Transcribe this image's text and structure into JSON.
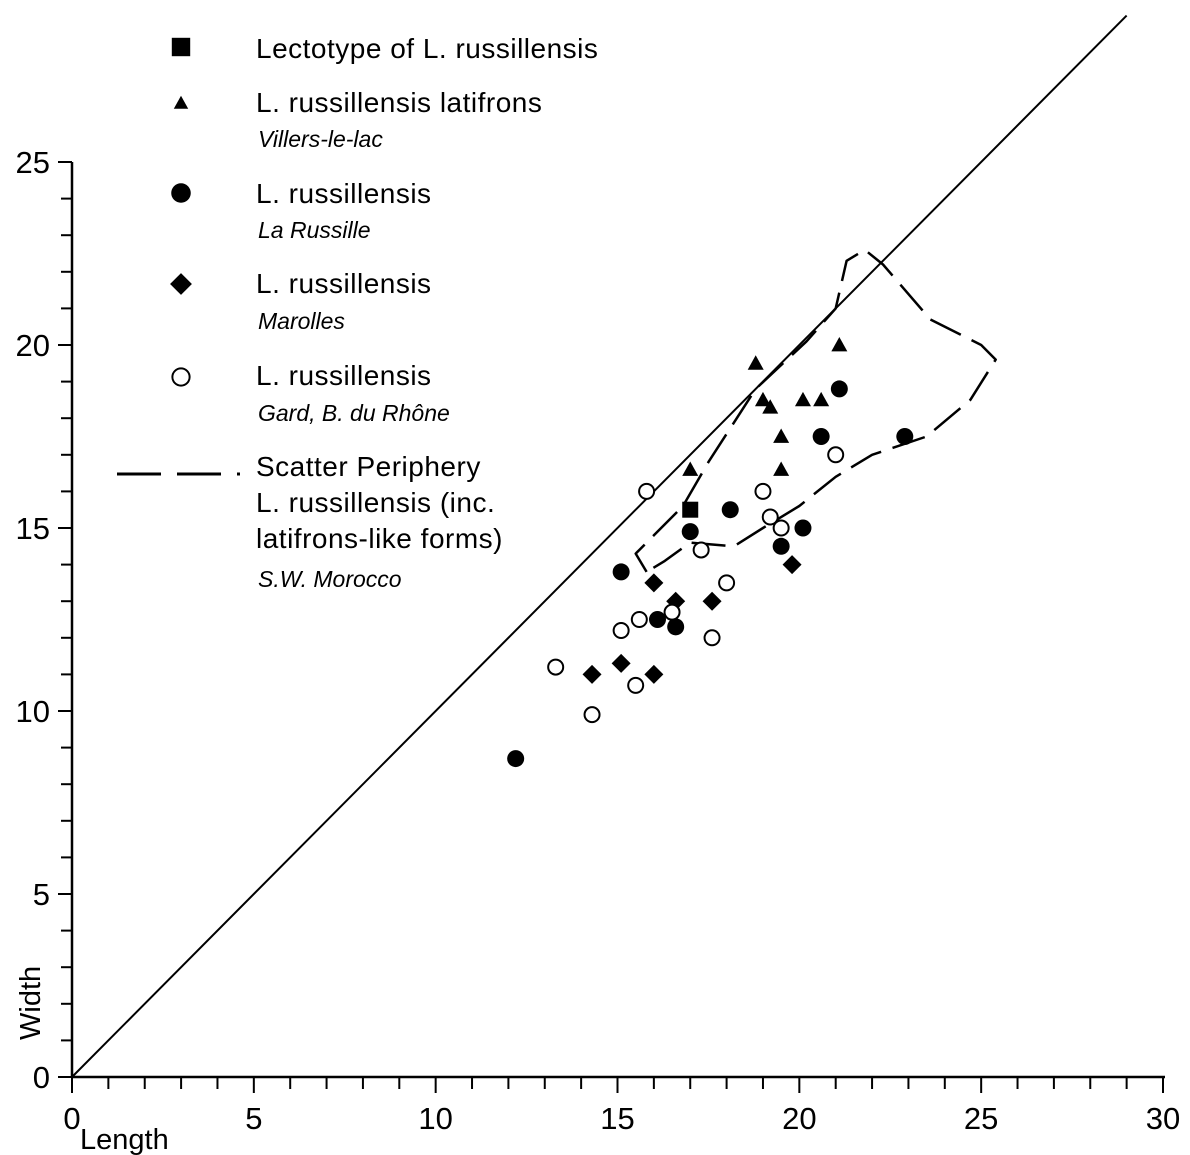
{
  "chart_data": {
    "type": "scatter",
    "xlabel": "Length",
    "ylabel": "Width",
    "xlim": [
      0,
      30
    ],
    "ylim": [
      0,
      25
    ],
    "x_major_ticks": [
      0,
      5,
      10,
      15,
      20,
      25,
      30
    ],
    "y_major_ticks": [
      0,
      5,
      10,
      15,
      20,
      25
    ],
    "minor_tick_step": 1,
    "grid": false,
    "legend_position": "top-left",
    "reference_line": {
      "from": [
        0,
        0
      ],
      "to": [
        29,
        29
      ],
      "style": "solid"
    },
    "series": [
      {
        "name": "Lectotype of L. russillensis",
        "sublabel": "",
        "marker": "square-filled",
        "x": [
          17.0
        ],
        "y": [
          15.5
        ]
      },
      {
        "name": "L. russillensis latifrons",
        "sublabel": "Villers-le-lac",
        "marker": "triangle-filled",
        "x": [
          17.0,
          18.8,
          19.0,
          19.2,
          19.5,
          19.5,
          20.1,
          20.6,
          21.1
        ],
        "y": [
          16.6,
          19.5,
          18.5,
          18.3,
          17.5,
          16.6,
          18.5,
          18.5,
          20.0
        ]
      },
      {
        "name": "L. russillensis",
        "sublabel": "La Russille",
        "marker": "circle-filled",
        "x": [
          12.2,
          15.1,
          16.1,
          16.6,
          17.0,
          18.1,
          19.5,
          20.1,
          20.6,
          21.1,
          22.9
        ],
        "y": [
          8.7,
          13.8,
          12.5,
          12.3,
          14.9,
          15.5,
          14.5,
          15.0,
          17.5,
          18.8,
          17.5
        ]
      },
      {
        "name": "L. russillensis",
        "sublabel": "Marolles",
        "marker": "diamond-filled",
        "x": [
          14.3,
          15.1,
          16.0,
          16.0,
          16.6,
          17.6,
          19.8
        ],
        "y": [
          11.0,
          11.3,
          11.0,
          13.5,
          13.0,
          13.0,
          14.0
        ]
      },
      {
        "name": "L. russillensis",
        "sublabel": "Gard, B. du Rhône",
        "marker": "circle-open",
        "x": [
          13.3,
          14.3,
          15.1,
          15.5,
          15.6,
          15.8,
          16.5,
          17.3,
          17.6,
          18.0,
          19.0,
          19.2,
          19.5,
          21.0
        ],
        "y": [
          11.2,
          9.9,
          12.2,
          10.7,
          12.5,
          16.0,
          12.7,
          14.4,
          12.0,
          13.5,
          16.0,
          15.3,
          15.0,
          17.0
        ]
      },
      {
        "name": "Scatter Periphery",
        "name_lines": [
          "Scatter Periphery",
          "L. russillensis (inc.",
          "latifrons-like forms)"
        ],
        "sublabel": "S.W. Morocco",
        "marker": "dashed-line",
        "x": [
          15.8,
          15.5,
          16.0,
          16.8,
          17.5,
          18.8,
          20.2,
          21.0,
          21.3,
          21.8,
          22.3,
          23.6,
          25.0,
          25.4,
          24.7,
          23.5,
          22.0,
          21.0,
          20.0,
          19.0,
          18.2,
          17.0,
          16.3,
          15.8
        ],
        "y": [
          13.8,
          14.3,
          14.8,
          15.6,
          16.8,
          18.8,
          20.1,
          21.0,
          22.3,
          22.6,
          22.2,
          20.7,
          20.0,
          19.6,
          18.5,
          17.5,
          17.0,
          16.4,
          15.6,
          15.0,
          14.5,
          14.6,
          14.1,
          13.8
        ]
      }
    ]
  }
}
